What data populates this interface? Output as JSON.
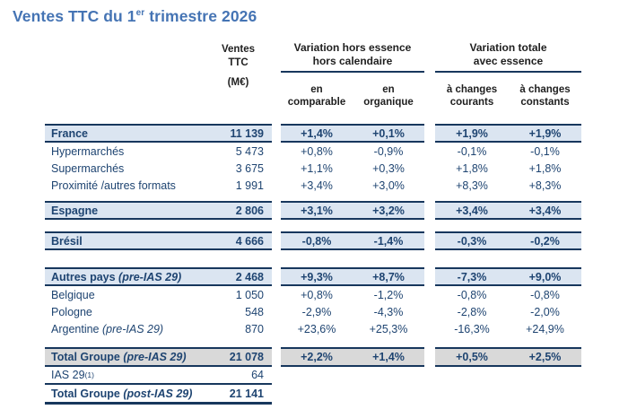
{
  "page": {
    "title": {
      "text_before_sup": "Ventes TTC du 1",
      "sup": "er",
      "text_after_sup": " trimestre 2026"
    }
  },
  "header": {
    "ventes": [
      "Ventes",
      "TTC",
      "(M€)"
    ],
    "group1": {
      "title": [
        "Variation hors essence",
        "hors calendaire"
      ],
      "sub1": [
        "en",
        "comparable"
      ],
      "sub2": [
        "en",
        "organique"
      ]
    },
    "group2": {
      "title": [
        "Variation totale",
        "avec essence"
      ],
      "sub1": [
        "à changes",
        "courants"
      ],
      "sub2": [
        "à changes",
        "constants"
      ]
    }
  },
  "rows": [
    {
      "label": "France",
      "value": "11 139",
      "cells": [
        "+1,4%",
        "+0,1%",
        "+1,9%",
        "+1,9%"
      ],
      "style": "section"
    },
    {
      "label": "Hypermarchés",
      "value": "5 473",
      "cells": [
        "+0,8%",
        "-0,9%",
        "-0,1%",
        "-0,1%"
      ],
      "style": "sub"
    },
    {
      "label": "Supermarchés",
      "value": "3 675",
      "cells": [
        "+1,1%",
        "+0,3%",
        "+1,8%",
        "+1,8%"
      ],
      "style": "sub"
    },
    {
      "label": "Proximité /autres formats",
      "value": "1 991",
      "cells": [
        "+3,4%",
        "+3,0%",
        "+8,3%",
        "+8,3%"
      ],
      "style": "sub"
    },
    {
      "label": "Espagne",
      "value": "2 806",
      "cells": [
        "+3,1%",
        "+3,2%",
        "+3,4%",
        "+3,4%"
      ],
      "style": "section",
      "gap": "sm"
    },
    {
      "label": "Brésil",
      "value": "4 666",
      "cells": [
        "-0,8%",
        "-1,4%",
        "-0,3%",
        "-0,2%"
      ],
      "style": "section",
      "gap": "md"
    },
    {
      "label": "Autres pays",
      "label_italic": "(pre-IAS 29)",
      "value": "2 468",
      "cells": [
        "+9,3%",
        "+8,7%",
        "-7,3%",
        "+9,0%"
      ],
      "style": "section",
      "gap": "lg"
    },
    {
      "label": "Belgique",
      "value": "1 050",
      "cells": [
        "+0,8%",
        "-1,2%",
        "-0,8%",
        "-0,8%"
      ],
      "style": "sub"
    },
    {
      "label": "Pologne",
      "value": "548",
      "cells": [
        "-2,9%",
        "-4,3%",
        "-2,8%",
        "-2,0%"
      ],
      "style": "sub"
    },
    {
      "label": "Argentine",
      "label_italic": "(pre-IAS 29)",
      "value": "870",
      "cells": [
        "+23,6%",
        "+25,3%",
        "-16,3%",
        "+24,9%"
      ],
      "style": "sub"
    },
    {
      "label": "Total Groupe",
      "label_italic": "(pre-IAS 29)",
      "value": "21 078",
      "cells": [
        "+2,2%",
        "+1,4%",
        "+0,5%",
        "+2,5%"
      ],
      "style": "total",
      "gap": "xl"
    },
    {
      "label": "IAS 29",
      "label_sup": "(1)",
      "value": "64",
      "cells": [],
      "style": "ias"
    },
    {
      "label": "Total Groupe",
      "label_italic": "(post-IAS 29)",
      "value": "21 141",
      "cells": [],
      "style": "post"
    }
  ],
  "colors": {
    "title_blue": "#4574b4",
    "navy_text": "#1e4471",
    "border_navy": "#17375d",
    "row_blue_bg": "#dbe5f1",
    "row_gray_bg": "#d9d9d9",
    "header_text": "#1f1f1f"
  }
}
